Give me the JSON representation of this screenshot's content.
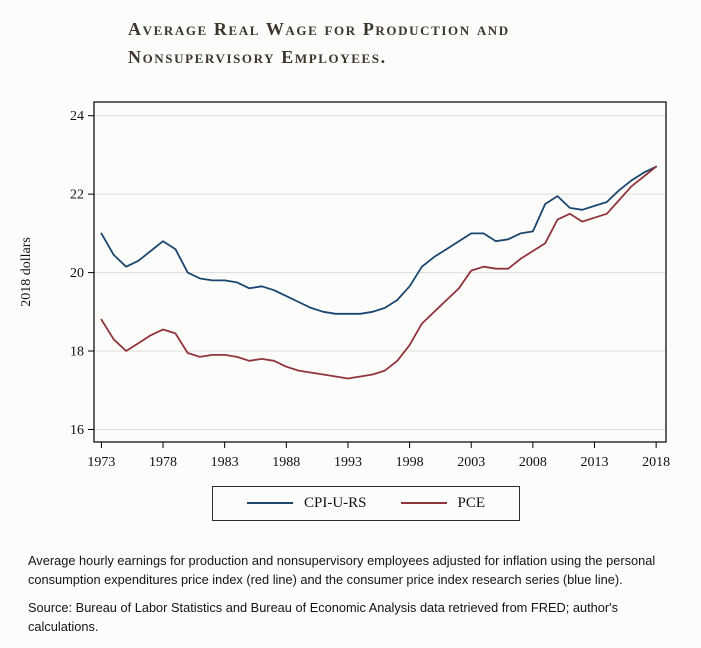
{
  "page": {
    "background": "#fcfcfa"
  },
  "chart_data": {
    "type": "line",
    "title": "Average Real Wage for Production and Nonsupervisory Employees.",
    "title_lines": [
      "Average Real Wage for Production and",
      "Nonsupervisory Employees."
    ],
    "xlabel": "",
    "ylabel": "2018 dollars",
    "ylim": [
      15.68,
      24.35
    ],
    "xlim": [
      1972.4,
      2018.8
    ],
    "yticks": [
      16,
      18,
      20,
      22,
      24
    ],
    "xticks": [
      1973,
      1978,
      1983,
      1988,
      1993,
      1998,
      2003,
      2008,
      2013,
      2018
    ],
    "grid": true,
    "legend_position": "bottom",
    "x": [
      1973,
      1974,
      1975,
      1976,
      1977,
      1978,
      1979,
      1980,
      1981,
      1982,
      1983,
      1984,
      1985,
      1986,
      1987,
      1988,
      1989,
      1990,
      1991,
      1992,
      1993,
      1994,
      1995,
      1996,
      1997,
      1998,
      1999,
      2000,
      2001,
      2002,
      2003,
      2004,
      2005,
      2006,
      2007,
      2008,
      2009,
      2010,
      2011,
      2012,
      2013,
      2014,
      2015,
      2016,
      2017,
      2018
    ],
    "series": [
      {
        "name": "CPI-U-RS",
        "color": "#1a476f",
        "values": [
          21.0,
          20.45,
          20.15,
          20.3,
          20.55,
          20.8,
          20.6,
          20.0,
          19.85,
          19.8,
          19.8,
          19.75,
          19.6,
          19.65,
          19.55,
          19.4,
          19.25,
          19.1,
          19.0,
          18.95,
          18.95,
          18.95,
          19.0,
          19.1,
          19.3,
          19.65,
          20.15,
          20.4,
          20.6,
          20.8,
          21.0,
          21.0,
          20.8,
          20.85,
          21.0,
          21.05,
          21.75,
          21.95,
          21.65,
          21.6,
          21.7,
          21.8,
          22.1,
          22.35,
          22.55,
          22.7
        ]
      },
      {
        "name": "PCE",
        "color": "#90353b",
        "values": [
          18.8,
          18.3,
          18.0,
          18.2,
          18.4,
          18.55,
          18.45,
          17.95,
          17.85,
          17.9,
          17.9,
          17.85,
          17.75,
          17.8,
          17.75,
          17.6,
          17.5,
          17.45,
          17.4,
          17.35,
          17.3,
          17.35,
          17.4,
          17.5,
          17.75,
          18.15,
          18.7,
          19.0,
          19.3,
          19.6,
          20.05,
          20.15,
          20.1,
          20.1,
          20.35,
          20.55,
          20.75,
          21.35,
          21.5,
          21.3,
          21.4,
          21.5,
          21.85,
          22.2,
          22.45,
          22.7
        ]
      }
    ]
  },
  "caption": {
    "note": "Average hourly earnings for production and nonsupervisory employees adjusted for inflation using the personal consumption expenditures price index (red line) and the consumer price index research series (blue line).",
    "source": "Source: Bureau of Labor Statistics and Bureau of Economic Analysis data retrieved from FRED; author's calculations."
  }
}
